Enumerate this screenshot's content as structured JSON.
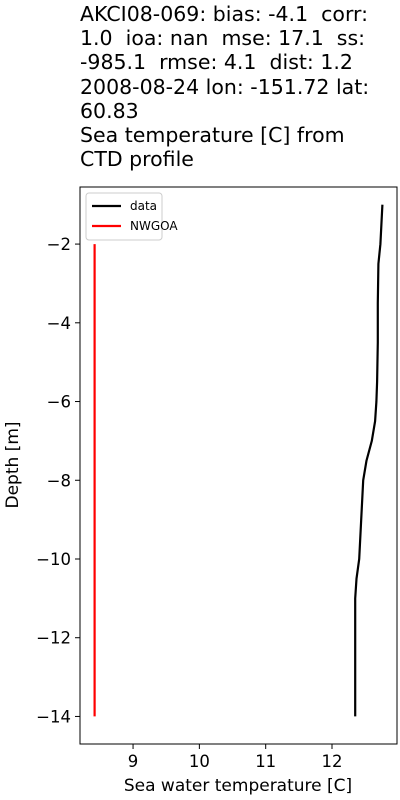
{
  "chart_data": {
    "type": "line",
    "title_lines": [
      "AKCI08-069: bias: -4.1  corr:",
      "1.0  ioa: nan  mse: 17.1  ss:",
      "-985.1  rmse: 4.1  dist: 1.2",
      "2008-08-24 lon: -151.72 lat:",
      "60.83",
      "Sea temperature [C] from",
      "CTD profile"
    ],
    "xlabel": "Sea water temperature [C]",
    "ylabel": "Depth [m]",
    "xlim": [
      8.2,
      12.98
    ],
    "ylim": [
      -14.7,
      -0.55
    ],
    "xticks": [
      9,
      10,
      11,
      12
    ],
    "yticks": [
      -2,
      -4,
      -6,
      -8,
      -10,
      -12,
      -14
    ],
    "grid": false,
    "legend_position": "upper-left",
    "series": [
      {
        "name": "data",
        "color": "#000000",
        "x": [
          12.76,
          12.73,
          12.7,
          12.69,
          12.69,
          12.68,
          12.67,
          12.65,
          12.6,
          12.52,
          12.47,
          12.44,
          12.41,
          12.37,
          12.35,
          12.35,
          12.35,
          12.35
        ],
        "y": [
          -1.0,
          -2.0,
          -2.5,
          -3.5,
          -4.5,
          -5.5,
          -6.0,
          -6.5,
          -7.0,
          -7.5,
          -8.0,
          -9.0,
          -10.0,
          -10.5,
          -11.0,
          -12.0,
          -13.0,
          -14.0
        ]
      },
      {
        "name": "NWGOA",
        "color": "#ff0000",
        "x": [
          8.42,
          8.42,
          8.42,
          8.42
        ],
        "y": [
          -2.0,
          -6.0,
          -10.0,
          -14.0
        ]
      }
    ]
  }
}
